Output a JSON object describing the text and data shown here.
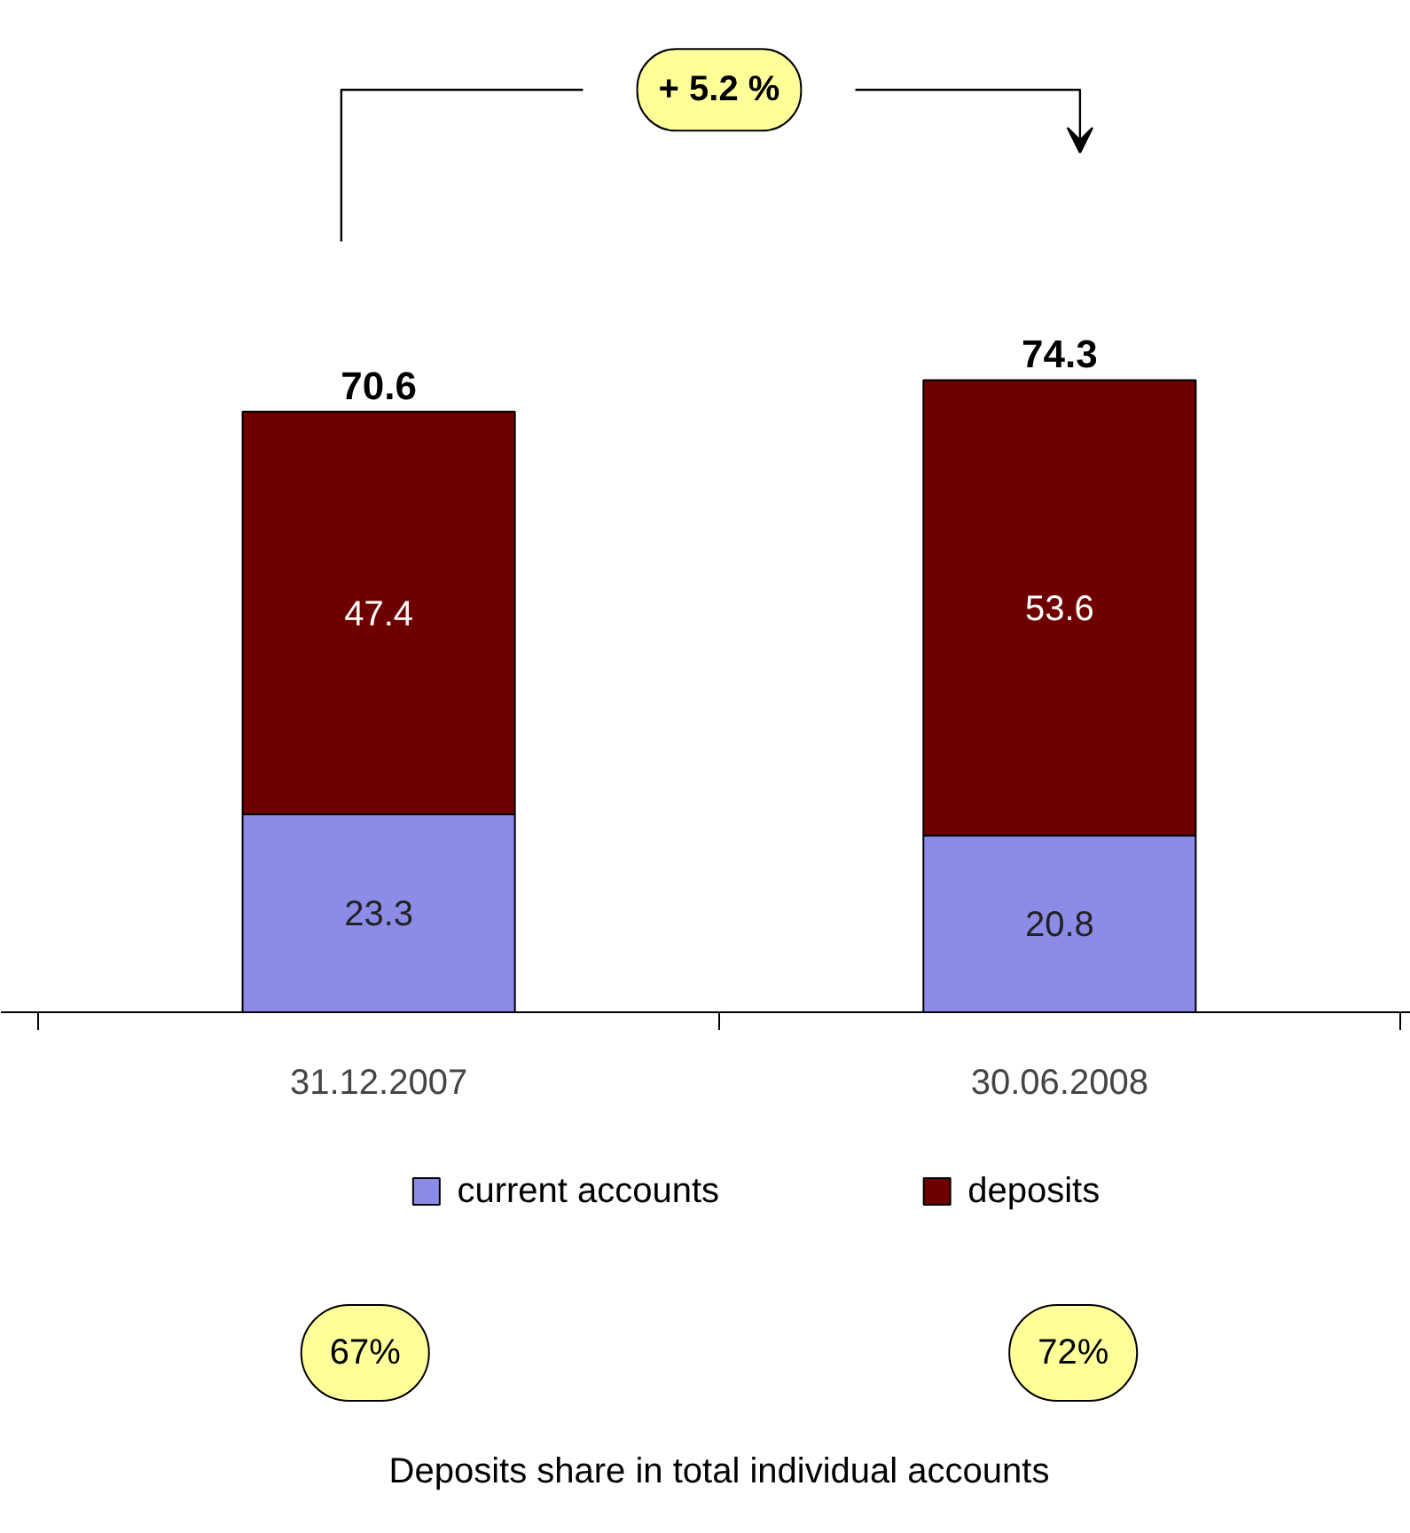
{
  "chart_data": {
    "type": "bar",
    "stacked": true,
    "categories": [
      "31.12.2007",
      "30.06.2008"
    ],
    "series": [
      {
        "name": "current accounts",
        "color": "#8c8ce8",
        "values": [
          23.3,
          20.8
        ]
      },
      {
        "name": "deposits",
        "color": "#6e0000",
        "values": [
          47.4,
          53.6
        ]
      }
    ],
    "totals": [
      "70.6",
      "74.3"
    ],
    "data_labels": true,
    "tick_labels": "x",
    "grid": false,
    "legend": "bottom",
    "annotations": [
      "+ 5.2 %",
      "67%",
      "72%",
      "Deposits share in total individual accounts"
    ]
  }
}
